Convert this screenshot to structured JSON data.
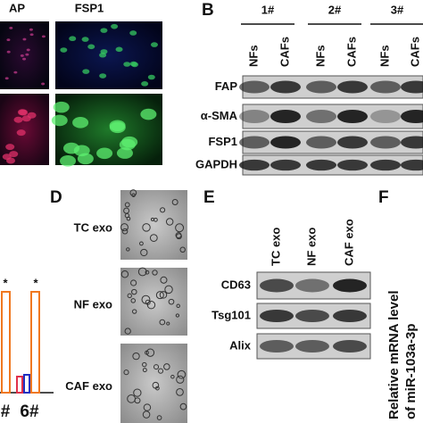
{
  "panel_a": {
    "labels": [
      "AP",
      "FSP1"
    ]
  },
  "panel_b": {
    "letter": "B",
    "groups": [
      "1#",
      "2#",
      "3#"
    ],
    "lanes": [
      "NFs",
      "CAFs",
      "NFs",
      "CAFs",
      "NFs",
      "CAFs"
    ],
    "rows": [
      "FAP",
      "α-SMA",
      "FSP1",
      "GAPDH"
    ]
  },
  "panel_c": {
    "x_labels": [
      "#",
      "6#"
    ],
    "significance": [
      "*",
      "*"
    ]
  },
  "panel_d": {
    "letter": "D",
    "rows": [
      "TC exo",
      "NF exo",
      "CAF exo"
    ]
  },
  "panel_e": {
    "letter": "E",
    "lanes": [
      "TC exo",
      "NF exo",
      "CAF exo"
    ],
    "rows": [
      "CD63",
      "Tsg101",
      "Alix"
    ]
  },
  "panel_f": {
    "letter": "F",
    "y_label": [
      "Relative mRNA level",
      "of miR-103a-3p"
    ]
  }
}
